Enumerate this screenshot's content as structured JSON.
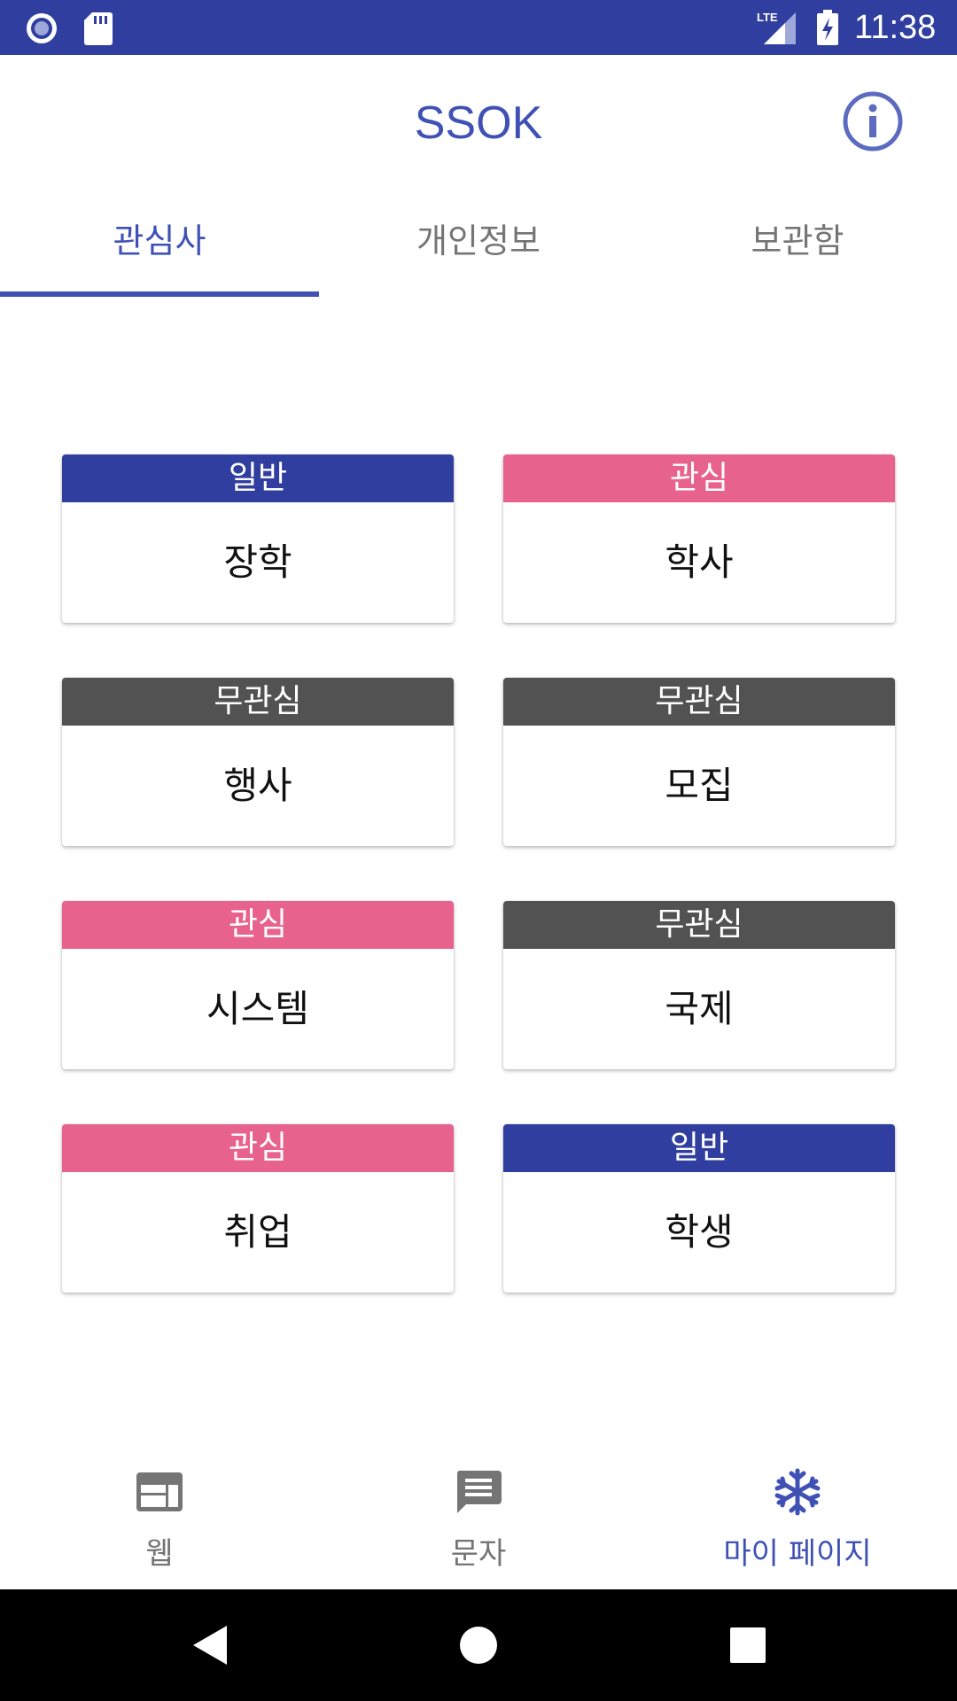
{
  "status_bar": {
    "time": "11:38",
    "network": "LTE",
    "bg_color": "#303f9f",
    "icons": [
      "radio-icon",
      "sd-card-icon",
      "lte-signal-icon",
      "battery-charging-icon"
    ]
  },
  "app_bar": {
    "title": "SSOK",
    "info_icon": "info-icon",
    "accent_color": "#3f51b5"
  },
  "tabs": [
    {
      "label": "관심사",
      "selected": true
    },
    {
      "label": "개인정보",
      "selected": false
    },
    {
      "label": "보관함",
      "selected": false
    }
  ],
  "badge_colors": {
    "일반": "#303f9f",
    "관심": "#e8628e",
    "무관심": "#525252"
  },
  "categories": [
    {
      "badge": "일반",
      "label": "장학"
    },
    {
      "badge": "관심",
      "label": "학사"
    },
    {
      "badge": "무관심",
      "label": "행사"
    },
    {
      "badge": "무관심",
      "label": "모집"
    },
    {
      "badge": "관심",
      "label": "시스템"
    },
    {
      "badge": "무관심",
      "label": "국제"
    },
    {
      "badge": "관심",
      "label": "취업"
    },
    {
      "badge": "일반",
      "label": "학생"
    }
  ],
  "bottom_nav": [
    {
      "label": "웹",
      "icon": "web-icon",
      "selected": false
    },
    {
      "label": "문자",
      "icon": "message-icon",
      "selected": false
    },
    {
      "label": "마이 페이지",
      "icon": "snowflake-icon",
      "selected": true
    }
  ],
  "system_nav": [
    "back-icon",
    "home-icon",
    "recents-icon"
  ]
}
